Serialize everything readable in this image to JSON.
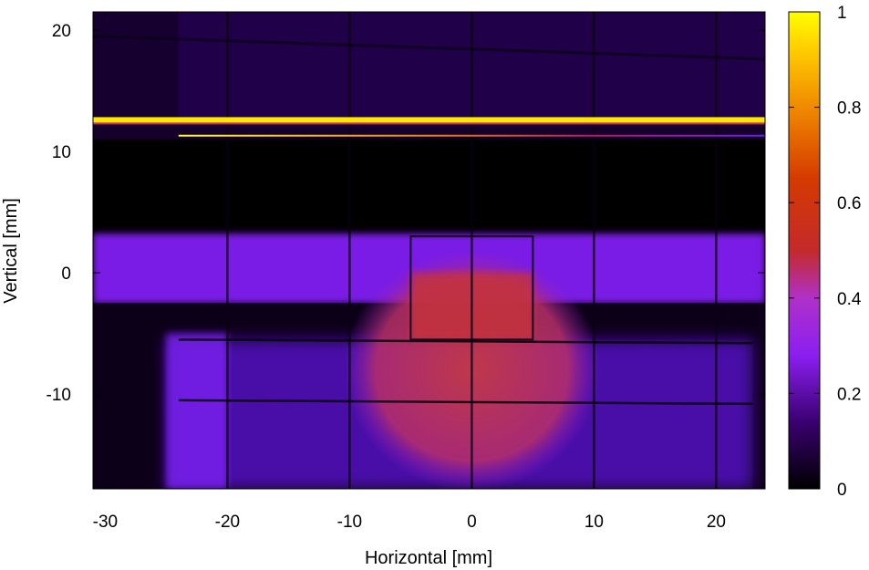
{
  "chart_data": {
    "type": "heatmap",
    "xlabel": "Horizontal [mm]",
    "ylabel": "Vertical [mm]",
    "xlim": [
      -31,
      24
    ],
    "ylim": [
      -17.8,
      21.5
    ],
    "x_ticks": [
      -30,
      -20,
      -10,
      0,
      10,
      20
    ],
    "y_ticks": [
      -10,
      0,
      10,
      20
    ],
    "colorbar": {
      "range": [
        0,
        1
      ],
      "ticks": [
        0,
        0.2,
        0.4,
        0.6,
        0.8,
        1
      ],
      "tick_labels": [
        "0",
        "0.2",
        "0.4",
        "0.6",
        "0.8",
        "1"
      ],
      "colormap": [
        "#000000",
        "#3a0070",
        "#8b1ff0",
        "#b030c8",
        "#c42a2a",
        "#e06000",
        "#ffb000",
        "#ffff00"
      ]
    },
    "features": {
      "background_low_level": 0.05,
      "upper_band": {
        "y_range": [
          12.3,
          21.5
        ],
        "level": 0.08
      },
      "bright_line_1": {
        "y": 12.6,
        "x_range": [
          -31,
          24
        ],
        "level": 1.0
      },
      "bright_line_2": {
        "y": 11.3,
        "x_range": [
          -24,
          24
        ],
        "level_start": 0.95,
        "level_end": 0.25
      },
      "dark_gap": {
        "y_range": [
          3.2,
          11.0
        ],
        "level": 0.0
      },
      "horizontal_band": {
        "y_range": [
          -2.5,
          3.2
        ],
        "level": 0.28
      },
      "lower_region": {
        "x_range": [
          -25,
          23
        ],
        "y_range": [
          -17.8,
          -2.5
        ],
        "level": 0.12
      },
      "central_beam_spot": {
        "center": [
          0,
          -8
        ],
        "half_width": [
          10.5,
          10
        ],
        "level": 0.45
      },
      "inner_square": {
        "x_range": [
          -5,
          5
        ],
        "y_range": [
          -5.5,
          0
        ],
        "level": 0.5
      },
      "grid_lines_x": [
        -20,
        -10,
        0,
        10,
        20
      ],
      "grid_lines_y": [
        -10.5,
        -5.5
      ]
    }
  }
}
